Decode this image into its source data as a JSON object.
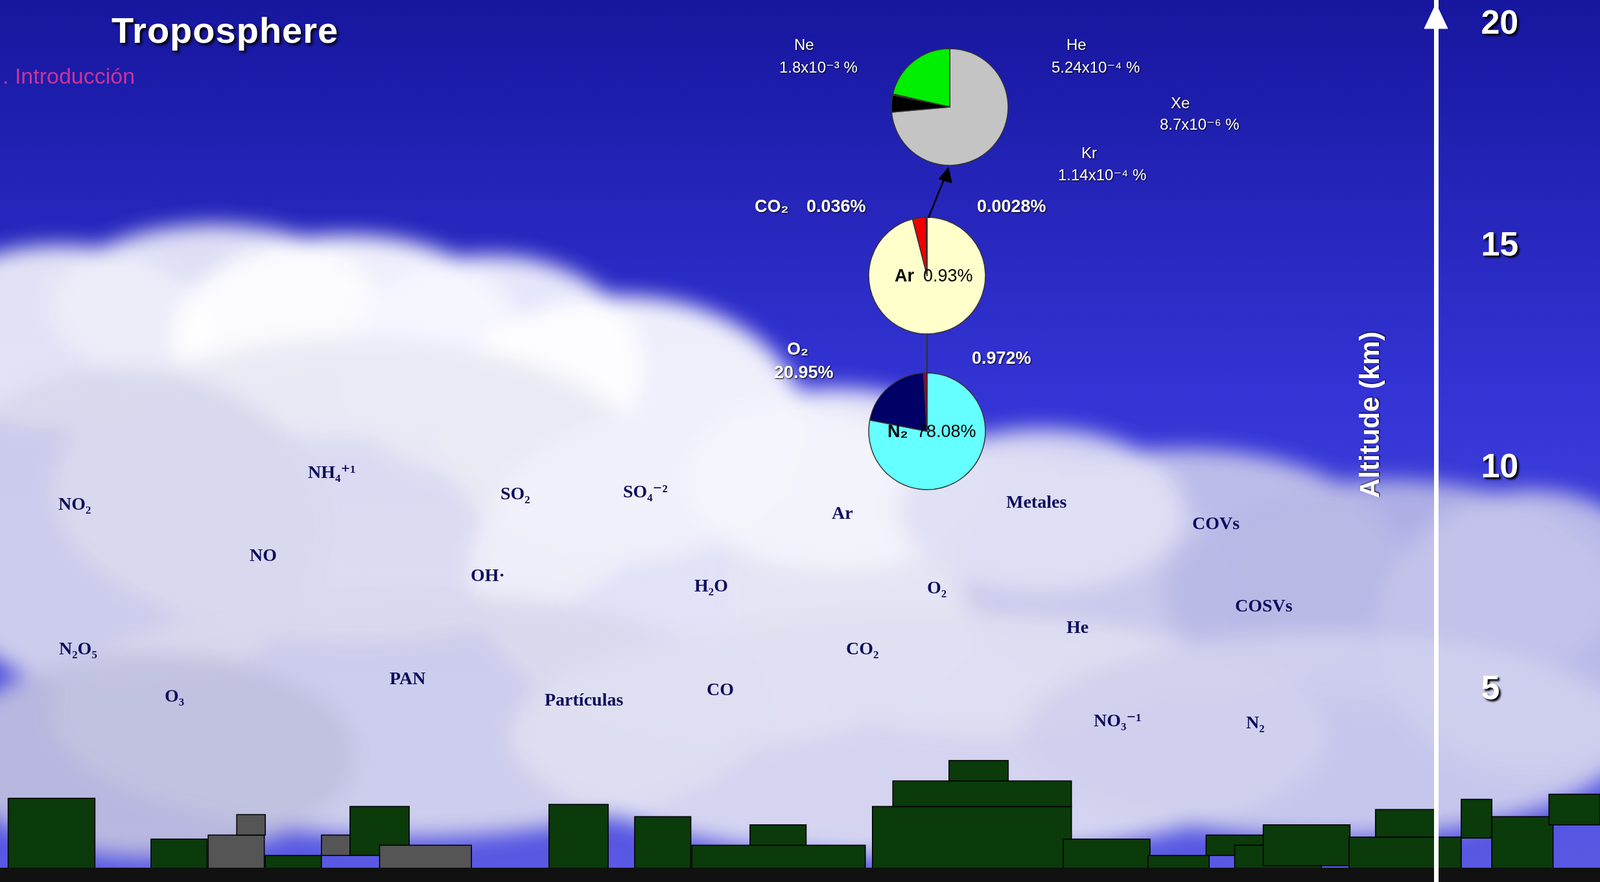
{
  "title": "Troposphere",
  "section": ". Introducción",
  "chart_data": [
    {
      "type": "pie",
      "categories": [
        "Ne",
        "He",
        "Xe",
        "Kr"
      ],
      "values": [
        0.0018,
        0.000524,
        8.7e-06,
        0.000114
      ],
      "value_labels": [
        "1.8x10⁻³ %",
        "5.24x10⁻⁴ %",
        "8.7x10⁻⁶ %",
        "1.14x10⁻⁴ %"
      ],
      "colors": [
        "#c4c4c4",
        "#00ee00",
        "#990099",
        "#000000"
      ]
    },
    {
      "type": "pie",
      "categories": [
        "Ar",
        "CO₂",
        null
      ],
      "values": [
        0.93,
        0.036,
        0.0028
      ],
      "value_labels": [
        "0.93%",
        "0.036%",
        "0.0028%"
      ],
      "colors": [
        "#ffffcc",
        "#ee0000",
        "#000000"
      ]
    },
    {
      "type": "pie",
      "categories": [
        "N₂",
        "O₂",
        null
      ],
      "values": [
        78.08,
        20.95,
        0.972
      ],
      "value_labels": [
        "78.08%",
        "20.95%",
        "0.972%"
      ],
      "colors": [
        "#66ffff",
        "#000066",
        "#990033"
      ]
    }
  ],
  "altitude_axis": {
    "label": "Altitude (km)",
    "ylim": [
      0.6,
      20.5
    ],
    "yticks": [
      5,
      10,
      15,
      20
    ]
  },
  "species": [
    "NH₄⁺¹",
    "NO₂",
    "SO₂",
    "SO₄⁻²",
    "Ar",
    "Metales",
    "COVs",
    "NO",
    "OH·",
    "H₂O",
    "O₂",
    "COSVs",
    "He",
    "N₂O₅",
    "CO₂",
    "PAN",
    "O₃",
    "Partículas",
    "CO",
    "NO₃⁻¹",
    "N₂"
  ]
}
